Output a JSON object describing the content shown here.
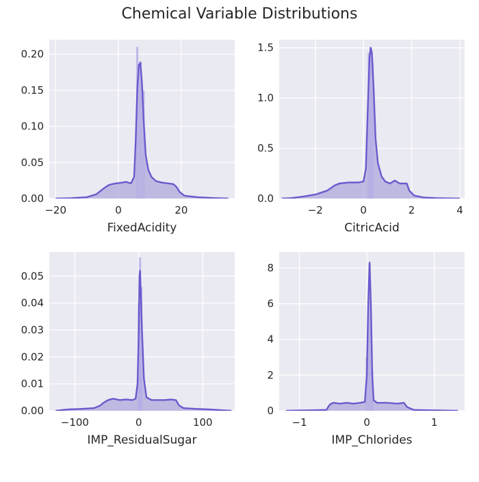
{
  "figure": {
    "title": "Chemical Variable Distributions"
  },
  "colors": {
    "background": "#ffffff",
    "axes_face": "#EAEAF2",
    "grid": "#ffffff",
    "kde_line": "#6A5ACD",
    "fill": "#9890D4",
    "hist": "#B4AEE6",
    "text": "#262626"
  },
  "chart_data": [
    {
      "type": "area",
      "title": "",
      "xlabel": "FixedAcidity",
      "ylabel": "",
      "xlim": [
        -22,
        37
      ],
      "ylim": [
        0,
        0.22
      ],
      "xticks": [
        -20,
        0,
        20
      ],
      "xtick_labels": [
        "−20",
        "0",
        "20"
      ],
      "yticks": [
        0,
        0.05,
        0.1,
        0.15,
        0.2
      ],
      "ytick_labels": [
        "0.00",
        "0.05",
        "0.10",
        "0.15",
        "0.20"
      ],
      "grid": true,
      "kde": [
        [
          -20,
          0
        ],
        [
          -15,
          0.0005
        ],
        [
          -10,
          0.002
        ],
        [
          -7,
          0.006
        ],
        [
          -5,
          0.013
        ],
        [
          -3,
          0.019
        ],
        [
          -1,
          0.021
        ],
        [
          1,
          0.022
        ],
        [
          2.5,
          0.023
        ],
        [
          4,
          0.021
        ],
        [
          5,
          0.03
        ],
        [
          5.5,
          0.08
        ],
        [
          6,
          0.15
        ],
        [
          6.5,
          0.185
        ],
        [
          7,
          0.188
        ],
        [
          7.5,
          0.16
        ],
        [
          8,
          0.11
        ],
        [
          8.7,
          0.06
        ],
        [
          9.5,
          0.04
        ],
        [
          10.5,
          0.03
        ],
        [
          12,
          0.024
        ],
        [
          14,
          0.022
        ],
        [
          16,
          0.021
        ],
        [
          17.5,
          0.02
        ],
        [
          18.5,
          0.016
        ],
        [
          19.5,
          0.009
        ],
        [
          21,
          0.004
        ],
        [
          25,
          0.002
        ],
        [
          30,
          0.0008
        ],
        [
          35,
          0
        ]
      ],
      "hist_spikes": [
        [
          6,
          0.21
        ],
        [
          7,
          0.19
        ],
        [
          8,
          0.15
        ]
      ]
    },
    {
      "type": "area",
      "title": "",
      "xlabel": "CitricAcid",
      "ylabel": "",
      "xlim": [
        -3.5,
        4.2
      ],
      "ylim": [
        0,
        1.58
      ],
      "xticks": [
        -2,
        0,
        2,
        4
      ],
      "xtick_labels": [
        "−2",
        "0",
        "2",
        "4"
      ],
      "yticks": [
        0,
        0.5,
        1.0,
        1.5
      ],
      "ytick_labels": [
        "0.0",
        "0.5",
        "1.0",
        "1.5"
      ],
      "grid": true,
      "kde": [
        [
          -3.4,
          0
        ],
        [
          -3,
          0.005
        ],
        [
          -2.5,
          0.02
        ],
        [
          -2,
          0.04
        ],
        [
          -1.5,
          0.08
        ],
        [
          -1.2,
          0.13
        ],
        [
          -1,
          0.15
        ],
        [
          -0.6,
          0.16
        ],
        [
          -0.2,
          0.16
        ],
        [
          0,
          0.17
        ],
        [
          0.1,
          0.3
        ],
        [
          0.18,
          0.9
        ],
        [
          0.25,
          1.4
        ],
        [
          0.3,
          1.5
        ],
        [
          0.35,
          1.45
        ],
        [
          0.42,
          1.1
        ],
        [
          0.5,
          0.6
        ],
        [
          0.6,
          0.35
        ],
        [
          0.75,
          0.22
        ],
        [
          0.9,
          0.17
        ],
        [
          1.1,
          0.15
        ],
        [
          1.3,
          0.18
        ],
        [
          1.5,
          0.15
        ],
        [
          1.8,
          0.15
        ],
        [
          1.9,
          0.08
        ],
        [
          2.1,
          0.03
        ],
        [
          2.5,
          0.01
        ],
        [
          3,
          0.005
        ],
        [
          3.5,
          0.002
        ],
        [
          4,
          0
        ]
      ],
      "hist_spikes": [
        [
          0.22,
          1.45
        ],
        [
          0.3,
          1.5
        ],
        [
          0.38,
          1.35
        ]
      ]
    },
    {
      "type": "area",
      "title": "",
      "xlabel": "IMP_ResidualSugar",
      "ylabel": "",
      "xlim": [
        -140,
        150
      ],
      "ylim": [
        0,
        0.059
      ],
      "xticks": [
        -100,
        0,
        100
      ],
      "xtick_labels": [
        "−100",
        "0",
        "100"
      ],
      "yticks": [
        0,
        0.01,
        0.02,
        0.03,
        0.04,
        0.05
      ],
      "ytick_labels": [
        "0.00",
        "0.01",
        "0.02",
        "0.03",
        "0.04",
        "0.05"
      ],
      "grid": true,
      "kde": [
        [
          -130,
          0
        ],
        [
          -110,
          0.0005
        ],
        [
          -90,
          0.0007
        ],
        [
          -70,
          0.001
        ],
        [
          -60,
          0.002
        ],
        [
          -55,
          0.003
        ],
        [
          -48,
          0.004
        ],
        [
          -40,
          0.0045
        ],
        [
          -30,
          0.004
        ],
        [
          -20,
          0.0042
        ],
        [
          -10,
          0.004
        ],
        [
          -5,
          0.0045
        ],
        [
          -2,
          0.01
        ],
        [
          0,
          0.03
        ],
        [
          1,
          0.05
        ],
        [
          2,
          0.052
        ],
        [
          3,
          0.045
        ],
        [
          5,
          0.03
        ],
        [
          8,
          0.012
        ],
        [
          12,
          0.005
        ],
        [
          20,
          0.004
        ],
        [
          30,
          0.004
        ],
        [
          40,
          0.004
        ],
        [
          50,
          0.0042
        ],
        [
          58,
          0.004
        ],
        [
          63,
          0.002
        ],
        [
          70,
          0.001
        ],
        [
          90,
          0.0007
        ],
        [
          110,
          0.0005
        ],
        [
          130,
          0.0002
        ],
        [
          145,
          0
        ]
      ],
      "hist_spikes": [
        [
          2,
          0.057
        ],
        [
          4,
          0.046
        ],
        [
          0,
          0.04
        ]
      ]
    },
    {
      "type": "area",
      "title": "",
      "xlabel": "IMP_Chlorides",
      "ylabel": "",
      "xlim": [
        -1.3,
        1.45
      ],
      "ylim": [
        0,
        8.9
      ],
      "xticks": [
        -1,
        0,
        1
      ],
      "xtick_labels": [
        "−1",
        "0",
        "1"
      ],
      "yticks": [
        0,
        2,
        4,
        6,
        8
      ],
      "ytick_labels": [
        "0",
        "2",
        "4",
        "6",
        "8"
      ],
      "grid": true,
      "kde": [
        [
          -1.2,
          0
        ],
        [
          -1,
          0.02
        ],
        [
          -0.8,
          0.03
        ],
        [
          -0.6,
          0.05
        ],
        [
          -0.55,
          0.35
        ],
        [
          -0.5,
          0.45
        ],
        [
          -0.4,
          0.4
        ],
        [
          -0.3,
          0.45
        ],
        [
          -0.2,
          0.4
        ],
        [
          -0.1,
          0.45
        ],
        [
          -0.03,
          0.5
        ],
        [
          0,
          2
        ],
        [
          0.02,
          6
        ],
        [
          0.04,
          8.3
        ],
        [
          0.06,
          6
        ],
        [
          0.08,
          2
        ],
        [
          0.1,
          0.6
        ],
        [
          0.15,
          0.45
        ],
        [
          0.3,
          0.45
        ],
        [
          0.45,
          0.4
        ],
        [
          0.55,
          0.45
        ],
        [
          0.6,
          0.2
        ],
        [
          0.7,
          0.05
        ],
        [
          0.9,
          0.03
        ],
        [
          1.1,
          0.02
        ],
        [
          1.35,
          0
        ]
      ],
      "hist_spikes": [
        [
          0.04,
          8.2
        ],
        [
          0.0,
          3.0
        ],
        [
          0.08,
          2.2
        ]
      ]
    }
  ]
}
